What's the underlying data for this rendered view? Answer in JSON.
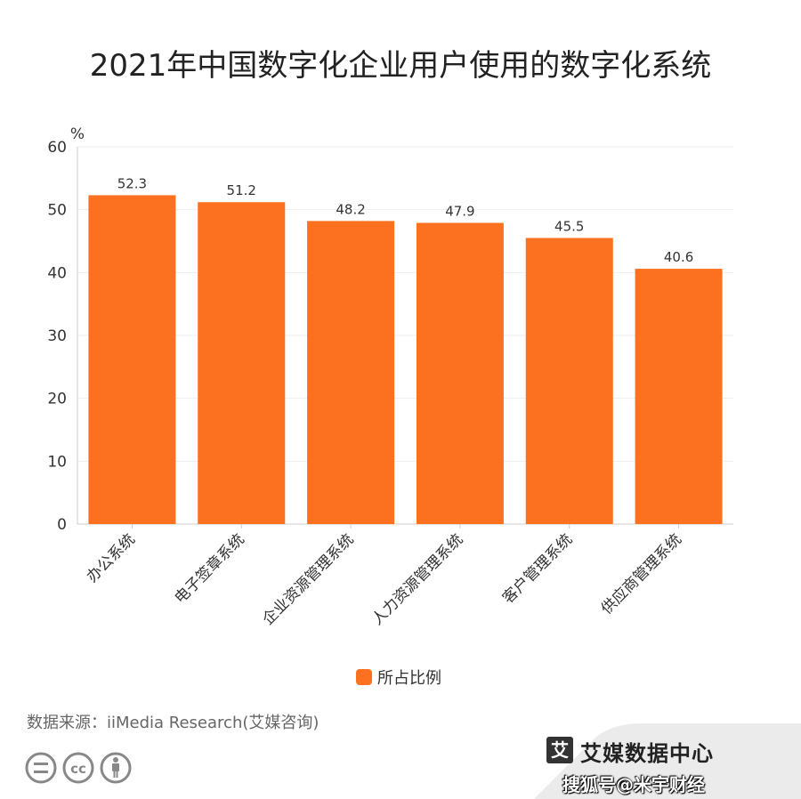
{
  "chart_data": {
    "type": "bar",
    "title": "2021年中国数字化企业用户使用的数字化系统",
    "ylabel": "%",
    "xlabel": "",
    "ylim": [
      0,
      60
    ],
    "yticks": [
      0,
      10,
      20,
      30,
      40,
      50,
      60
    ],
    "grid": true,
    "legend": "bottom-center",
    "categories": [
      "办公系统",
      "电子签章系统",
      "企业资源管理系统",
      "人力资源管理系统",
      "客户管理系统",
      "供应商管理系统"
    ],
    "series": [
      {
        "name": "所占比例",
        "values": [
          52.3,
          51.2,
          48.2,
          47.9,
          45.5,
          40.6
        ],
        "labels": [
          "52.3",
          "51.2",
          "48.2",
          "47.9",
          "45.5",
          "40.6"
        ]
      }
    ],
    "colors": {
      "bar": "#FC711F",
      "grid": "#EEEEEE",
      "axis": "#CCCCCC"
    }
  },
  "source": "数据来源：iiMedia Research(艾媒咨询)",
  "license_icons": [
    "equal-icon",
    "cc-icon",
    "person-icon"
  ],
  "license_labels": {
    "equal": "=",
    "cc": "cc"
  },
  "brand": {
    "logo": "艾",
    "name": "艾媒数据中心"
  },
  "watermark": "搜狐号@米宇财经"
}
